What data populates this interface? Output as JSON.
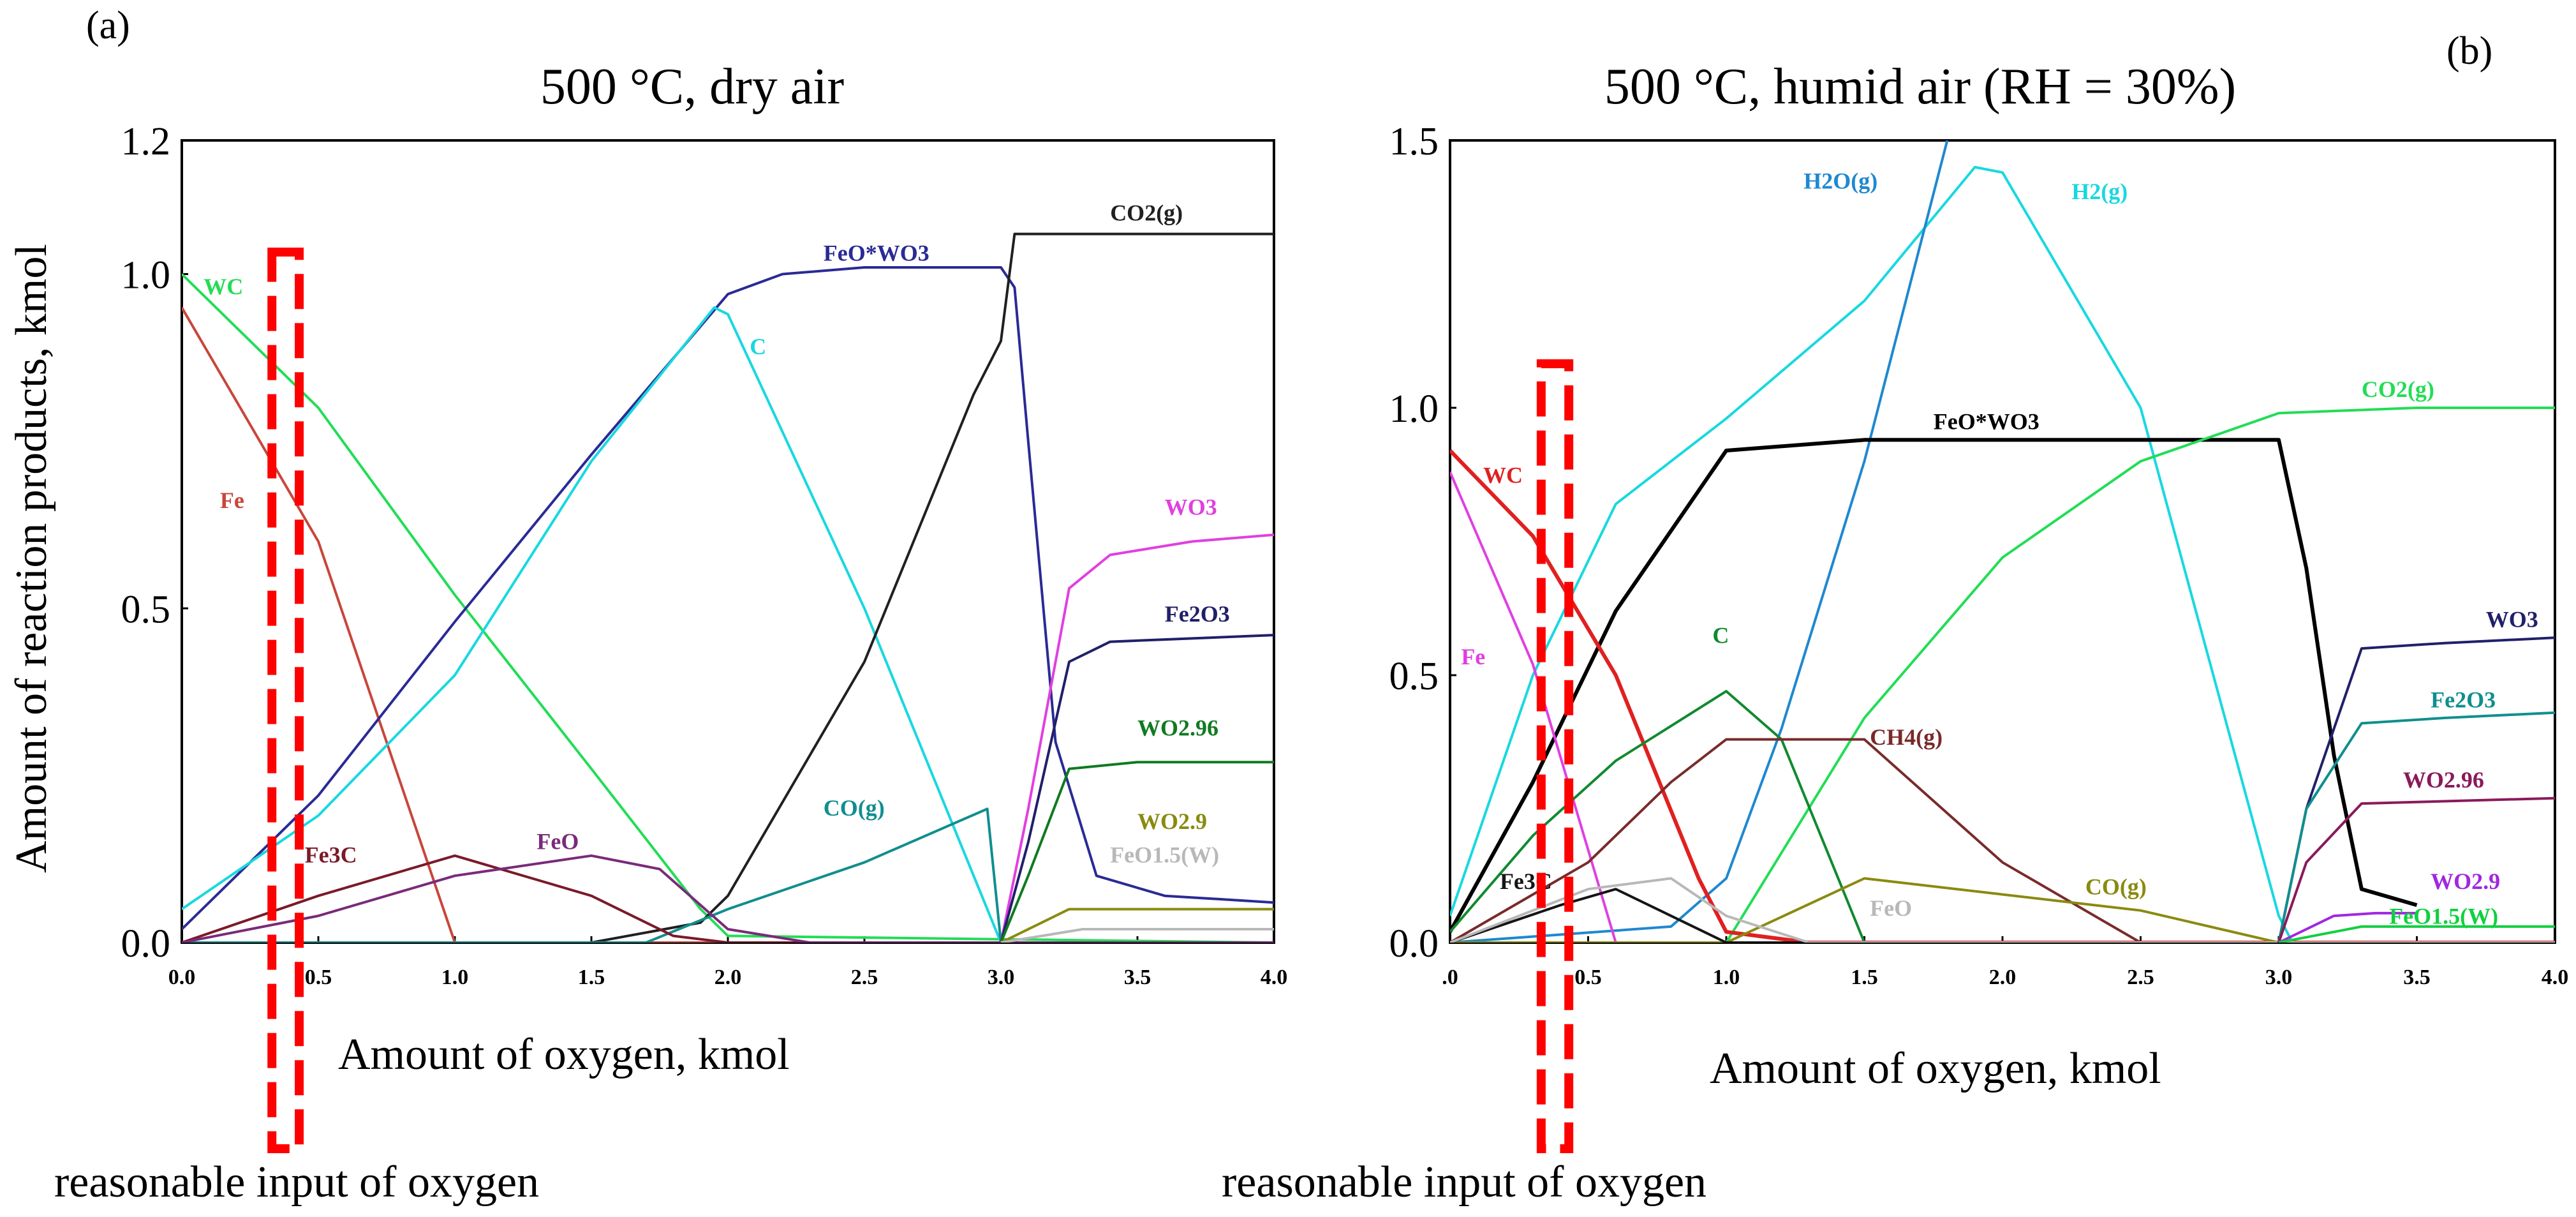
{
  "figure": {
    "charts": [
      {
        "panel": "(a)",
        "title": "500 °C, dry air",
        "xlabel": "Amount of oxygen, kmol",
        "ylabel": "Amount of reaction products, kmol",
        "annotation": "reasonable input of oxygen",
        "xticks": [
          "0.0",
          "0.5",
          "1.0",
          "1.5",
          "2.0",
          "2.5",
          "3.0",
          "3.5",
          "4.0"
        ],
        "yticks": [
          "0.0",
          "0.5",
          "1.0",
          "1.2"
        ]
      },
      {
        "panel": "(b)",
        "title": "500 °C, humid air (RH = 30%)",
        "xlabel": "Amount of oxygen, kmol",
        "ylabel": "",
        "annotation": "reasonable input of oxygen",
        "xticks": [
          ".0",
          "0.5",
          "1.0",
          "1.5",
          "2.0",
          "2.5",
          "3.0",
          "3.5",
          "4.0"
        ],
        "yticks": [
          "0.0",
          "0.5",
          "1.0",
          "1.5"
        ]
      }
    ]
  },
  "chart_data": [
    {
      "type": "line",
      "title": "500 °C, dry air",
      "xlabel": "Amount of oxygen, kmol",
      "ylabel": "Amount of reaction products, kmol",
      "xlim": [
        0,
        4.0
      ],
      "ylim": [
        0,
        1.2
      ],
      "grid": false,
      "reasonable_oxygen_input_range": [
        0.33,
        0.43
      ],
      "series": [
        {
          "name": "WC",
          "color": "#22dd55",
          "points": [
            [
              0,
              1.0
            ],
            [
              0.5,
              0.8
            ],
            [
              1.0,
              0.52
            ],
            [
              1.5,
              0.26
            ],
            [
              1.9,
              0.05
            ],
            [
              2.0,
              0.01
            ],
            [
              4.0,
              0.0
            ]
          ]
        },
        {
          "name": "Fe",
          "color": "#c8463a",
          "points": [
            [
              0,
              0.95
            ],
            [
              0.5,
              0.6
            ],
            [
              1.0,
              0.0
            ],
            [
              4.0,
              0.0
            ]
          ]
        },
        {
          "name": "FeO*WO3",
          "color": "#2a2a96",
          "points": [
            [
              0,
              0.02
            ],
            [
              0.5,
              0.22
            ],
            [
              1.0,
              0.48
            ],
            [
              1.5,
              0.73
            ],
            [
              2.0,
              0.97
            ],
            [
              2.2,
              1.0
            ],
            [
              2.5,
              1.01
            ],
            [
              3.0,
              1.01
            ],
            [
              3.05,
              0.98
            ],
            [
              3.1,
              0.75
            ],
            [
              3.2,
              0.3
            ],
            [
              3.35,
              0.1
            ],
            [
              3.6,
              0.07
            ],
            [
              4.0,
              0.06
            ]
          ]
        },
        {
          "name": "C",
          "color": "#18d8e0",
          "points": [
            [
              0,
              0.05
            ],
            [
              0.5,
              0.19
            ],
            [
              1.0,
              0.4
            ],
            [
              1.5,
              0.72
            ],
            [
              1.95,
              0.95
            ],
            [
              2.0,
              0.94
            ],
            [
              2.5,
              0.5
            ],
            [
              3.0,
              0.0
            ],
            [
              4.0,
              0.0
            ]
          ]
        },
        {
          "name": "CO2(g)",
          "color": "#202020",
          "points": [
            [
              0,
              0.0
            ],
            [
              1.5,
              0.0
            ],
            [
              1.9,
              0.03
            ],
            [
              2.0,
              0.07
            ],
            [
              2.5,
              0.42
            ],
            [
              2.9,
              0.82
            ],
            [
              3.0,
              0.9
            ],
            [
              3.05,
              1.06
            ],
            [
              3.5,
              1.06
            ],
            [
              4.0,
              1.06
            ]
          ]
        },
        {
          "name": "CO(g)",
          "color": "#108e8e",
          "points": [
            [
              0,
              0.0
            ],
            [
              1.7,
              0.0
            ],
            [
              2.0,
              0.05
            ],
            [
              2.5,
              0.12
            ],
            [
              2.95,
              0.2
            ],
            [
              3.0,
              0.0
            ],
            [
              4.0,
              0.0
            ]
          ]
        },
        {
          "name": "Fe3C",
          "color": "#7a1a2a",
          "points": [
            [
              0,
              0.0
            ],
            [
              0.5,
              0.07
            ],
            [
              1.0,
              0.13
            ],
            [
              1.5,
              0.07
            ],
            [
              1.8,
              0.01
            ],
            [
              2.0,
              0.0
            ],
            [
              4.0,
              0.0
            ]
          ]
        },
        {
          "name": "FeO",
          "color": "#7a2a7a",
          "points": [
            [
              0,
              0.0
            ],
            [
              0.5,
              0.04
            ],
            [
              1.0,
              0.1
            ],
            [
              1.5,
              0.13
            ],
            [
              1.75,
              0.11
            ],
            [
              2.0,
              0.02
            ],
            [
              2.3,
              0.0
            ],
            [
              4.0,
              0.0
            ]
          ]
        },
        {
          "name": "WO3",
          "color": "#e040e0",
          "points": [
            [
              3.0,
              0.0
            ],
            [
              3.1,
              0.2
            ],
            [
              3.25,
              0.53
            ],
            [
              3.4,
              0.58
            ],
            [
              3.7,
              0.6
            ],
            [
              4.0,
              0.61
            ]
          ]
        },
        {
          "name": "Fe2O3",
          "color": "#20206a",
          "points": [
            [
              3.0,
              0.0
            ],
            [
              3.1,
              0.15
            ],
            [
              3.25,
              0.42
            ],
            [
              3.4,
              0.45
            ],
            [
              4.0,
              0.46
            ]
          ]
        },
        {
          "name": "WO2.96",
          "color": "#107a20",
          "points": [
            [
              3.0,
              0.0
            ],
            [
              3.1,
              0.1
            ],
            [
              3.25,
              0.26
            ],
            [
              3.5,
              0.27
            ],
            [
              4.0,
              0.27
            ]
          ]
        },
        {
          "name": "WO2.9",
          "color": "#8a8a10",
          "points": [
            [
              3.0,
              0.0
            ],
            [
              3.2,
              0.04
            ],
            [
              3.25,
              0.05
            ],
            [
              4.0,
              0.05
            ]
          ]
        },
        {
          "name": "FeO1.5(W)",
          "color": "#b8b8b8",
          "points": [
            [
              3.0,
              0.0
            ],
            [
              3.3,
              0.02
            ],
            [
              4.0,
              0.02
            ]
          ]
        }
      ]
    },
    {
      "type": "line",
      "title": "500 °C, humid air (RH = 30%)",
      "xlabel": "Amount of oxygen, kmol",
      "ylabel": "",
      "xlim": [
        0,
        4.0
      ],
      "ylim": [
        0,
        1.5
      ],
      "grid": false,
      "reasonable_oxygen_input_range": [
        0.33,
        0.43
      ],
      "series": [
        {
          "name": "H2(g)",
          "color": "#18d8e0",
          "points": [
            [
              0,
              0.05
            ],
            [
              0.3,
              0.5
            ],
            [
              0.6,
              0.82
            ],
            [
              1.0,
              0.98
            ],
            [
              1.5,
              1.2
            ],
            [
              1.9,
              1.45
            ],
            [
              2.0,
              1.44
            ],
            [
              2.5,
              1.0
            ],
            [
              3.0,
              0.05
            ],
            [
              3.05,
              0.0
            ],
            [
              4.0,
              0.0
            ]
          ]
        },
        {
          "name": "H2O(g)",
          "color": "#1e88d0",
          "points": [
            [
              0,
              0.0
            ],
            [
              0.8,
              0.03
            ],
            [
              1.0,
              0.12
            ],
            [
              1.2,
              0.4
            ],
            [
              1.5,
              0.9
            ],
            [
              1.8,
              1.5
            ]
          ]
        },
        {
          "name": "FeO*WO3",
          "color": "#000000",
          "points": [
            [
              0,
              0.02
            ],
            [
              0.3,
              0.3
            ],
            [
              0.6,
              0.62
            ],
            [
              1.0,
              0.92
            ],
            [
              1.5,
              0.94
            ],
            [
              3.0,
              0.94
            ],
            [
              3.1,
              0.7
            ],
            [
              3.2,
              0.35
            ],
            [
              3.3,
              0.1
            ],
            [
              3.5,
              0.07
            ]
          ]
        },
        {
          "name": "CO2(g)",
          "color": "#22dd55",
          "points": [
            [
              0,
              0.0
            ],
            [
              1.0,
              0.0
            ],
            [
              1.5,
              0.42
            ],
            [
              2.0,
              0.72
            ],
            [
              2.5,
              0.9
            ],
            [
              3.0,
              0.99
            ],
            [
              3.5,
              1.0
            ],
            [
              4.0,
              1.0
            ]
          ]
        },
        {
          "name": "WC",
          "color": "#e02020",
          "points": [
            [
              0,
              0.92
            ],
            [
              0.3,
              0.76
            ],
            [
              0.6,
              0.5
            ],
            [
              0.9,
              0.12
            ],
            [
              1.0,
              0.02
            ],
            [
              1.3,
              0.0
            ],
            [
              4.0,
              0.0
            ]
          ]
        },
        {
          "name": "Fe",
          "color": "#e040e0",
          "points": [
            [
              0,
              0.88
            ],
            [
              0.3,
              0.52
            ],
            [
              0.6,
              0.0
            ],
            [
              4.0,
              0.0
            ]
          ]
        },
        {
          "name": "C",
          "color": "#108a30",
          "points": [
            [
              0,
              0.02
            ],
            [
              0.3,
              0.2
            ],
            [
              0.6,
              0.34
            ],
            [
              1.0,
              0.47
            ],
            [
              1.2,
              0.38
            ],
            [
              1.5,
              0.0
            ],
            [
              4.0,
              0.0
            ]
          ]
        },
        {
          "name": "CH4(g)",
          "color": "#7a2a2a",
          "points": [
            [
              0,
              0.0
            ],
            [
              0.5,
              0.15
            ],
            [
              0.8,
              0.3
            ],
            [
              1.0,
              0.38
            ],
            [
              1.5,
              0.38
            ],
            [
              2.0,
              0.15
            ],
            [
              2.5,
              0.0
            ],
            [
              4.0,
              0.0
            ]
          ]
        },
        {
          "name": "CO(g)",
          "color": "#8a8a10",
          "points": [
            [
              0,
              0.0
            ],
            [
              1.0,
              0.0
            ],
            [
              1.5,
              0.12
            ],
            [
              2.5,
              0.06
            ],
            [
              3.0,
              0.0
            ],
            [
              4.0,
              0.0
            ]
          ]
        },
        {
          "name": "Fe3C",
          "color": "#151515",
          "points": [
            [
              0,
              0.0
            ],
            [
              0.4,
              0.07
            ],
            [
              0.6,
              0.1
            ],
            [
              1.0,
              0.0
            ],
            [
              4.0,
              0.0
            ]
          ]
        },
        {
          "name": "FeO",
          "color": "#b8b8b8",
          "points": [
            [
              0,
              0.0
            ],
            [
              0.5,
              0.1
            ],
            [
              0.8,
              0.12
            ],
            [
              1.0,
              0.05
            ],
            [
              1.3,
              0.0
            ],
            [
              4.0,
              0.0
            ]
          ]
        },
        {
          "name": "WO3",
          "color": "#20206a",
          "points": [
            [
              3.0,
              0.0
            ],
            [
              3.1,
              0.25
            ],
            [
              3.3,
              0.55
            ],
            [
              3.6,
              0.56
            ],
            [
              4.0,
              0.57
            ]
          ]
        },
        {
          "name": "Fe2O3",
          "color": "#108e8e",
          "points": [
            [
              3.0,
              0.0
            ],
            [
              3.1,
              0.25
            ],
            [
              3.3,
              0.41
            ],
            [
              3.6,
              0.42
            ],
            [
              4.0,
              0.43
            ]
          ]
        },
        {
          "name": "WO2.96",
          "color": "#8a1a5a",
          "points": [
            [
              3.0,
              0.0
            ],
            [
              3.1,
              0.15
            ],
            [
              3.3,
              0.26
            ],
            [
              4.0,
              0.27
            ]
          ]
        },
        {
          "name": "WO2.9",
          "color": "#a028e0",
          "points": [
            [
              3.0,
              0.0
            ],
            [
              3.2,
              0.05
            ],
            [
              3.35,
              0.055
            ],
            [
              3.5,
              0.055
            ]
          ]
        },
        {
          "name": "FeO1.5(W)",
          "color": "#10d040",
          "points": [
            [
              3.0,
              0.0
            ],
            [
              3.3,
              0.03
            ],
            [
              4.0,
              0.03
            ]
          ]
        }
      ]
    }
  ]
}
